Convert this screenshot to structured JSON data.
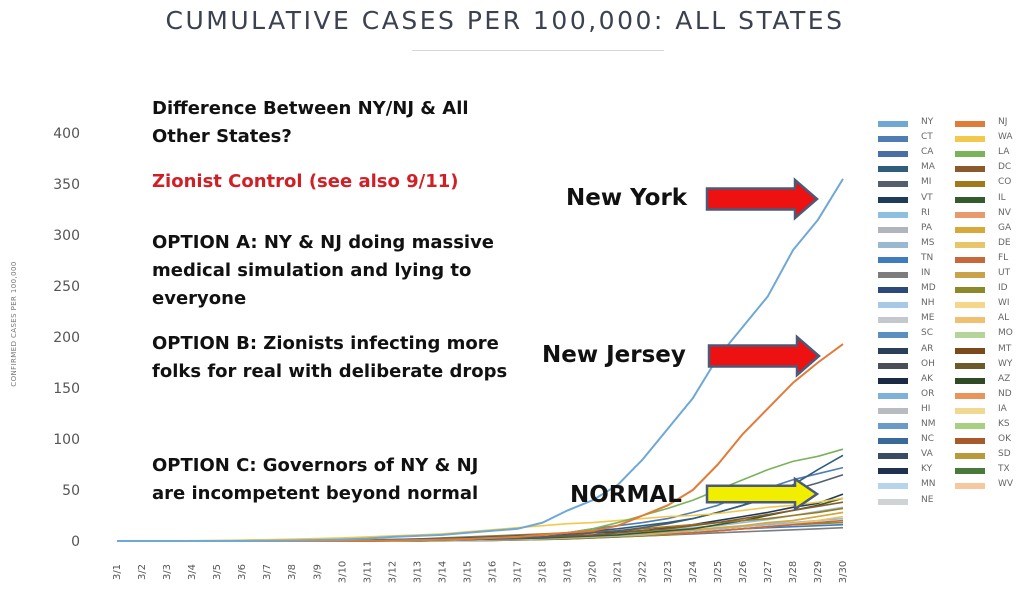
{
  "chart_data": {
    "type": "line",
    "title": "CUMULATIVE CASES PER 100,000: ALL STATES",
    "ylabel": "CONFIRMED CASES PER 100,000",
    "xlabel": "",
    "ylim": [
      0,
      400
    ],
    "y_ticks": [
      "0",
      "50",
      "100",
      "150",
      "200",
      "250",
      "300",
      "350",
      "400"
    ],
    "categories": [
      "3/1",
      "3/2",
      "3/3",
      "3/4",
      "3/5",
      "3/6",
      "3/7",
      "3/8",
      "3/9",
      "3/10",
      "3/11",
      "3/12",
      "3/13",
      "3/14",
      "3/15",
      "3/16",
      "3/17",
      "3/18",
      "3/19",
      "3/20",
      "3/21",
      "3/22",
      "3/23",
      "3/24",
      "3/25",
      "3/26",
      "3/27",
      "3/28",
      "3/29",
      "3/30"
    ],
    "grid": false,
    "legend_position": "right",
    "series": [
      {
        "name": "NY",
        "color": "#6fa8d4",
        "values": [
          0,
          0,
          0,
          0,
          0,
          0,
          0.2,
          0.5,
          1,
          1.5,
          2.5,
          4,
          5,
          6,
          8,
          10,
          12,
          18,
          30,
          40,
          55,
          80,
          110,
          140,
          180,
          210,
          240,
          285,
          315,
          355
        ]
      },
      {
        "name": "NJ",
        "color": "#e07b39",
        "values": [
          0,
          0,
          0,
          0,
          0,
          0,
          0,
          0,
          0,
          0.2,
          0.4,
          0.6,
          1,
          1.5,
          2,
          3,
          4,
          6,
          8,
          10,
          15,
          25,
          35,
          50,
          75,
          105,
          130,
          155,
          175,
          193
        ]
      },
      {
        "name": "LA",
        "color": "#7ab35a",
        "values": [
          0,
          0,
          0,
          0,
          0,
          0,
          0,
          0,
          0,
          0,
          0,
          0.3,
          0.6,
          1,
          2,
          3,
          4,
          6,
          8,
          12,
          18,
          25,
          32,
          40,
          50,
          60,
          70,
          78,
          83,
          90
        ]
      },
      {
        "name": "WA",
        "color": "#f2c94c",
        "values": [
          0,
          0,
          0,
          0.3,
          0.6,
          1,
          1.3,
          1.8,
          2.5,
          3,
          4,
          5,
          6,
          7,
          9,
          11,
          13,
          15,
          17,
          18,
          20,
          22,
          24,
          25,
          27,
          30,
          33,
          35,
          38,
          42
        ]
      },
      {
        "name": "MA",
        "color": "#2f5d7c",
        "values": [
          0,
          0,
          0,
          0,
          0,
          0,
          0,
          0,
          0,
          0.5,
          1,
          1.5,
          2,
          2.5,
          3,
          4,
          5,
          6,
          8,
          10,
          12,
          15,
          18,
          22,
          28,
          35,
          45,
          55,
          70,
          84
        ]
      },
      {
        "name": "CT",
        "color": "#4f7db3",
        "values": [
          0,
          0,
          0,
          0,
          0,
          0,
          0,
          0,
          0,
          0.2,
          0.4,
          0.6,
          1,
          2,
          3,
          4,
          5,
          6,
          8,
          12,
          15,
          18,
          22,
          28,
          35,
          45,
          52,
          60,
          66,
          72
        ]
      },
      {
        "name": "MI",
        "color": "#555f6b",
        "values": [
          0,
          0,
          0,
          0,
          0,
          0,
          0,
          0,
          0,
          0,
          0.2,
          0.4,
          0.6,
          1,
          1.5,
          2,
          3,
          4,
          6,
          8,
          10,
          13,
          17,
          22,
          28,
          35,
          42,
          50,
          57,
          65
        ]
      },
      {
        "name": "DC",
        "color": "#8a5a2b",
        "values": [
          0,
          0,
          0,
          0,
          0,
          0,
          0,
          0,
          0,
          0.2,
          0.4,
          0.6,
          1,
          1.5,
          2,
          2.5,
          3,
          4,
          5,
          6,
          8,
          10,
          12,
          15,
          18,
          22,
          26,
          30,
          34,
          38
        ]
      },
      {
        "name": "CO",
        "color": "#a07a1a",
        "values": [
          0,
          0,
          0,
          0,
          0,
          0,
          0,
          0,
          0.2,
          0.5,
          1,
          1.5,
          2,
          3,
          4,
          5,
          6,
          7,
          8,
          9,
          10,
          12,
          14,
          16,
          18,
          20,
          22,
          25,
          28,
          32
        ]
      },
      {
        "name": "IL",
        "color": "#355a2c",
        "values": [
          0,
          0,
          0,
          0,
          0,
          0,
          0,
          0,
          0,
          0,
          0,
          0.3,
          0.6,
          1,
          1.5,
          2,
          2.5,
          3,
          4,
          5,
          6,
          8,
          10,
          12,
          16,
          20,
          25,
          30,
          35,
          42
        ]
      },
      {
        "name": "VT",
        "color": "#1f3b5a",
        "values": [
          0,
          0,
          0,
          0,
          0,
          0,
          0,
          0,
          0,
          0,
          0,
          0.5,
          1,
          2,
          3,
          4,
          5,
          6,
          7,
          8,
          9,
          10,
          13,
          16,
          20,
          24,
          28,
          33,
          37,
          46
        ]
      },
      {
        "name": "RI",
        "color": "#8fbfe0",
        "values": [
          0,
          0,
          0,
          0,
          0,
          0,
          0,
          0,
          0,
          0,
          0.3,
          0.6,
          1,
          1.5,
          2,
          2.5,
          3,
          4,
          5,
          6,
          7,
          9,
          11,
          13,
          15,
          18,
          21,
          25,
          29,
          33
        ]
      },
      {
        "name": "GA",
        "color": "#d8a83a",
        "values": [
          0,
          0,
          0,
          0,
          0,
          0,
          0,
          0,
          0,
          0,
          0,
          0.3,
          0.6,
          1,
          1.5,
          2,
          2.5,
          3,
          4,
          5,
          6,
          7,
          9,
          11,
          13,
          15,
          18,
          20,
          24,
          28
        ]
      },
      {
        "name": "PA",
        "color": "#b0b5bb",
        "values": [
          0,
          0,
          0,
          0,
          0,
          0,
          0,
          0,
          0,
          0,
          0,
          0,
          0.3,
          0.6,
          1,
          1.5,
          2,
          2.5,
          3,
          4,
          5,
          6,
          8,
          10,
          12,
          14,
          17,
          20,
          24,
          28
        ]
      },
      {
        "name": "FL",
        "color": "#c8683a",
        "values": [
          0,
          0,
          0,
          0,
          0,
          0,
          0,
          0,
          0,
          0,
          0,
          0.2,
          0.4,
          0.6,
          1,
          1.5,
          2,
          2.5,
          3,
          4,
          5,
          6,
          7,
          8,
          10,
          12,
          14,
          16,
          18,
          20
        ]
      },
      {
        "name": "DE",
        "color": "#e8c46a",
        "values": [
          0,
          0,
          0,
          0,
          0,
          0,
          0,
          0,
          0,
          0,
          0,
          0,
          0.3,
          0.6,
          1,
          1.5,
          2,
          2.5,
          3,
          4,
          5,
          6,
          7,
          8,
          10,
          12,
          14,
          17,
          20,
          24
        ]
      },
      {
        "name": "MS",
        "color": "#9ab8d0",
        "values": [
          0,
          0,
          0,
          0,
          0,
          0,
          0,
          0,
          0,
          0,
          0,
          0,
          0.2,
          0.4,
          0.6,
          1,
          1.5,
          2,
          3,
          4,
          5,
          6,
          8,
          10,
          12,
          14,
          16,
          18,
          20,
          22
        ]
      },
      {
        "name": "ID",
        "color": "#8a8a2a",
        "values": [
          0,
          0,
          0,
          0,
          0,
          0,
          0,
          0,
          0,
          0,
          0,
          0,
          0,
          0.2,
          0.4,
          0.6,
          1,
          1.5,
          2,
          3,
          4,
          5,
          6,
          8,
          10,
          12,
          14,
          16,
          17,
          18
        ]
      },
      {
        "name": "TN",
        "color": "#3f7bbf",
        "values": [
          0,
          0,
          0,
          0,
          0,
          0,
          0,
          0,
          0,
          0,
          0,
          0,
          0.2,
          0.4,
          0.6,
          1,
          1.5,
          2,
          3,
          4,
          5,
          6,
          7,
          8,
          10,
          12,
          13,
          14,
          15,
          16
        ]
      },
      {
        "name": "IN",
        "color": "#7c7c7c",
        "values": [
          0,
          0,
          0,
          0,
          0,
          0,
          0,
          0,
          0,
          0,
          0,
          0,
          0,
          0.2,
          0.4,
          0.6,
          1,
          1.5,
          2,
          3,
          4,
          5,
          6,
          7,
          8,
          9,
          10,
          11,
          12,
          13
        ]
      }
    ],
    "legend": [
      {
        "name": "NY",
        "color": "#6fa8d4"
      },
      {
        "name": "NJ",
        "color": "#e07b39"
      },
      {
        "name": "CT",
        "color": "#4f7db3"
      },
      {
        "name": "WA",
        "color": "#f2c94c"
      },
      {
        "name": "CA",
        "color": "#4a6fa5"
      },
      {
        "name": "LA",
        "color": "#7ab35a"
      },
      {
        "name": "MA",
        "color": "#2f5d7c"
      },
      {
        "name": "DC",
        "color": "#8a5a2b"
      },
      {
        "name": "MI",
        "color": "#555f6b"
      },
      {
        "name": "CO",
        "color": "#a07a1a"
      },
      {
        "name": "VT",
        "color": "#1f3b5a"
      },
      {
        "name": "IL",
        "color": "#355a2c"
      },
      {
        "name": "RI",
        "color": "#8fbfe0"
      },
      {
        "name": "NV",
        "color": "#e79a6e"
      },
      {
        "name": "PA",
        "color": "#b0b5bb"
      },
      {
        "name": "GA",
        "color": "#d8a83a"
      },
      {
        "name": "MS",
        "color": "#9ab8d0"
      },
      {
        "name": "DE",
        "color": "#e8c46a"
      },
      {
        "name": "TN",
        "color": "#3f7bbf"
      },
      {
        "name": "FL",
        "color": "#c8683a"
      },
      {
        "name": "IN",
        "color": "#7c7c7c"
      },
      {
        "name": "UT",
        "color": "#c9a24a"
      },
      {
        "name": "MD",
        "color": "#2b4a7a"
      },
      {
        "name": "ID",
        "color": "#8a8a2a"
      },
      {
        "name": "NH",
        "color": "#a8c8e8"
      },
      {
        "name": "WI",
        "color": "#f5d68a"
      },
      {
        "name": "ME",
        "color": "#c4c8cc"
      },
      {
        "name": "AL",
        "color": "#f0c070"
      },
      {
        "name": "SC",
        "color": "#5a8fc0"
      },
      {
        "name": "MO",
        "color": "#b5d49a"
      },
      {
        "name": "AR",
        "color": "#2a3f5a"
      },
      {
        "name": "MT",
        "color": "#7a4a1a"
      },
      {
        "name": "OH",
        "color": "#4a4f55"
      },
      {
        "name": "WY",
        "color": "#6b5a2a"
      },
      {
        "name": "AK",
        "color": "#1a2a45"
      },
      {
        "name": "AZ",
        "color": "#2f4a25"
      },
      {
        "name": "OR",
        "color": "#7fb0d8"
      },
      {
        "name": "ND",
        "color": "#e8945a"
      },
      {
        "name": "HI",
        "color": "#b8bcc0"
      },
      {
        "name": "IA",
        "color": "#f0d890"
      },
      {
        "name": "NM",
        "color": "#6a9ac8"
      },
      {
        "name": "KS",
        "color": "#a8d080"
      },
      {
        "name": "NC",
        "color": "#3a6a9a"
      },
      {
        "name": "OK",
        "color": "#a85a2a"
      },
      {
        "name": "VA",
        "color": "#3a4a60"
      },
      {
        "name": "SD",
        "color": "#b89a3a"
      },
      {
        "name": "KY",
        "color": "#1f3050"
      },
      {
        "name": "TX",
        "color": "#4a7a3a"
      },
      {
        "name": "MN",
        "color": "#b8d4ec"
      },
      {
        "name": "WV",
        "color": "#f5c8a0"
      },
      {
        "name": "NE",
        "color": "#d0d3d6"
      }
    ]
  },
  "annotations": {
    "question": "Difference Between NY/NJ & All Other States?",
    "claim": "Zionist Control (see also 9/11)",
    "option_a": "OPTION A: NY & NJ doing massive medical simulation and lying to everyone",
    "option_b": "OPTION B: Zionists infecting more folks for real with deliberate drops",
    "option_c": "OPTION C: Governors of NY & NJ are incompetent beyond normal",
    "new_york": "New York",
    "new_jersey": "New Jersey",
    "normal": "NORMAL",
    "colors": {
      "red_text": "#d11f26",
      "red_arrow": "#ee1111",
      "yellow_arrow": "#f2ee00",
      "arrow_outline": "#4a5a7a"
    }
  }
}
